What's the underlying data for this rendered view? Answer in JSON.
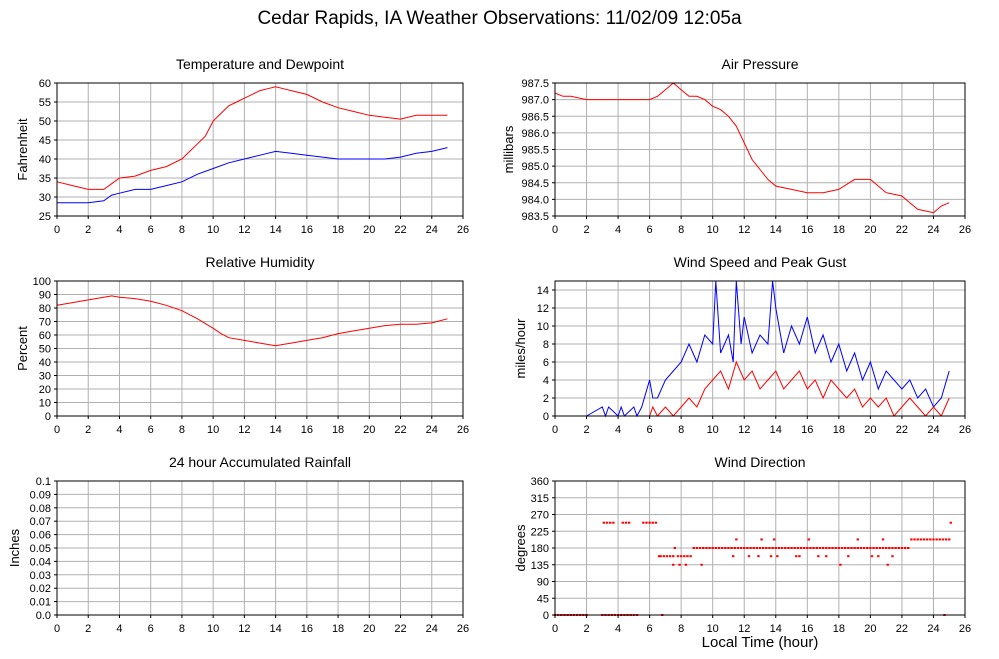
{
  "page": {
    "title": "Cedar Rapids, IA Weather Observations: 11/02/09 12:05a",
    "x_axis_label": "Local Time (hour)"
  },
  "colors": {
    "red": "#ff0000",
    "blue": "#0000ff",
    "grid": "#b0b0b0",
    "frame": "#000000"
  },
  "chart_data": [
    {
      "id": "temp",
      "type": "line",
      "title": "Temperature and Dewpoint",
      "xlabel": "",
      "ylabel": "Fahrenheit",
      "xlim": [
        0,
        26
      ],
      "ylim": [
        25,
        60
      ],
      "xticks": [
        0,
        2,
        4,
        6,
        8,
        10,
        12,
        14,
        16,
        18,
        20,
        22,
        24,
        26
      ],
      "yticks": [
        25,
        30,
        35,
        40,
        45,
        50,
        55,
        60
      ],
      "ytick_labels": [
        "25",
        "30",
        "35",
        "40",
        "45",
        "50",
        "55",
        "60"
      ],
      "grid": true,
      "series": [
        {
          "color": "#ff0000",
          "x": [
            0,
            1,
            2,
            3,
            3.5,
            4,
            5,
            6,
            7,
            8,
            8.5,
            9,
            9.5,
            10,
            10.5,
            11,
            11.5,
            12,
            12.5,
            13,
            13.5,
            14,
            14.5,
            15,
            16,
            17,
            18,
            19,
            20,
            21,
            22,
            23,
            24,
            25
          ],
          "y": [
            34,
            33,
            32,
            32,
            33.5,
            35,
            35.5,
            37,
            38,
            40,
            42,
            44,
            46,
            50,
            52,
            54,
            55,
            56,
            57,
            58,
            58.5,
            59,
            58.5,
            58,
            57,
            55,
            53.5,
            52.5,
            51.5,
            51,
            50.5,
            51.5,
            51.5,
            51.5
          ]
        },
        {
          "color": "#0000ff",
          "x": [
            0,
            1,
            2,
            3,
            3.5,
            4,
            5,
            6,
            7,
            8,
            9,
            10,
            11,
            12,
            13,
            14,
            15,
            16,
            17,
            18,
            19,
            20,
            21,
            22,
            23,
            24,
            25
          ],
          "y": [
            28.5,
            28.5,
            28.5,
            29,
            30.5,
            31,
            32,
            32,
            33,
            34,
            36,
            37.5,
            39,
            40,
            41,
            42,
            41.5,
            41,
            40.5,
            40,
            40,
            40,
            40,
            40.5,
            41.5,
            42,
            43
          ]
        }
      ]
    },
    {
      "id": "pressure",
      "type": "line",
      "title": "Air Pressure",
      "xlabel": "",
      "ylabel": "millibars",
      "xlim": [
        0,
        26
      ],
      "ylim": [
        983.5,
        987.5
      ],
      "xticks": [
        0,
        2,
        4,
        6,
        8,
        10,
        12,
        14,
        16,
        18,
        20,
        22,
        24,
        26
      ],
      "yticks": [
        983.5,
        984.0,
        984.5,
        985.0,
        985.5,
        986.0,
        986.5,
        987.0,
        987.5
      ],
      "ytick_labels": [
        "983.5",
        "984.0",
        "984.5",
        "985.0",
        "985.5",
        "986.0",
        "986.5",
        "987.0",
        "987.5"
      ],
      "grid": true,
      "series": [
        {
          "color": "#ff0000",
          "x": [
            0,
            0.5,
            1,
            2,
            3,
            4,
            5,
            6,
            6.5,
            7,
            7.5,
            8,
            8.5,
            9,
            9.5,
            10,
            10.5,
            11,
            11.5,
            12,
            12.5,
            13,
            13.5,
            14,
            15,
            16,
            17,
            18,
            19,
            20,
            20.5,
            21,
            22,
            22.5,
            23,
            24,
            24.5,
            25
          ],
          "y": [
            987.2,
            987.1,
            987.1,
            987.0,
            987.0,
            987.0,
            987.0,
            987.0,
            987.1,
            987.3,
            987.5,
            987.3,
            987.1,
            987.1,
            987.0,
            986.8,
            986.7,
            986.5,
            986.2,
            985.7,
            985.2,
            984.9,
            984.6,
            984.4,
            984.3,
            984.2,
            984.2,
            984.3,
            984.6,
            984.6,
            984.4,
            984.2,
            984.1,
            983.9,
            983.7,
            983.6,
            983.8,
            983.9
          ]
        }
      ]
    },
    {
      "id": "rh",
      "type": "line",
      "title": "Relative Humidity",
      "xlabel": "",
      "ylabel": "Percent",
      "xlim": [
        0,
        26
      ],
      "ylim": [
        0,
        100
      ],
      "xticks": [
        0,
        2,
        4,
        6,
        8,
        10,
        12,
        14,
        16,
        18,
        20,
        22,
        24,
        26
      ],
      "yticks": [
        0,
        10,
        20,
        30,
        40,
        50,
        60,
        70,
        80,
        90,
        100
      ],
      "ytick_labels": [
        "0",
        "10",
        "20",
        "30",
        "40",
        "50",
        "60",
        "70",
        "80",
        "90",
        "100"
      ],
      "grid": true,
      "series": [
        {
          "color": "#ff0000",
          "x": [
            0,
            1,
            2,
            3,
            3.5,
            4,
            5,
            6,
            7,
            8,
            9,
            10,
            10.5,
            11,
            12,
            13,
            14,
            14.5,
            15,
            16,
            17,
            18,
            19,
            20,
            21,
            22,
            23,
            24,
            25
          ],
          "y": [
            82,
            84,
            86,
            88,
            89,
            88,
            87,
            85,
            82,
            78,
            72,
            65,
            61,
            58,
            56,
            54,
            52,
            53,
            54,
            56,
            58,
            61,
            63,
            65,
            67,
            68,
            68,
            69,
            72
          ]
        }
      ]
    },
    {
      "id": "wind",
      "type": "line",
      "title": "Wind Speed and Peak Gust",
      "xlabel": "",
      "ylabel": "miles/hour",
      "xlim": [
        0,
        26
      ],
      "ylim": [
        0,
        15
      ],
      "xticks": [
        0,
        2,
        4,
        6,
        8,
        10,
        12,
        14,
        16,
        18,
        20,
        22,
        24,
        26
      ],
      "yticks": [
        0,
        2,
        4,
        6,
        8,
        10,
        12,
        14
      ],
      "ytick_labels": [
        "0",
        "2",
        "4",
        "6",
        "8",
        "10",
        "12",
        "14"
      ],
      "grid": true,
      "series": [
        {
          "color": "#0000ff",
          "x": [
            0,
            1,
            2,
            2.5,
            3,
            3.2,
            3.4,
            4,
            4.2,
            4.4,
            5,
            5.2,
            5.5,
            6,
            6.2,
            6.5,
            7,
            7.5,
            8,
            8.5,
            9,
            9.5,
            10,
            10.2,
            10.5,
            11,
            11.3,
            11.5,
            11.8,
            12,
            12.5,
            13,
            13.5,
            13.8,
            14,
            14.5,
            15,
            15.5,
            16,
            16.5,
            17,
            17.5,
            18,
            18.5,
            19,
            19.5,
            20,
            20.5,
            21,
            21.5,
            22,
            22.5,
            23,
            23.5,
            24,
            24.5,
            25
          ],
          "y": [
            0,
            0,
            0,
            0.5,
            1,
            0,
            1,
            0,
            1,
            0,
            1,
            0,
            1,
            4,
            2,
            2,
            4,
            5,
            6,
            8,
            6,
            9,
            8,
            15,
            7,
            9,
            6,
            15,
            8,
            11,
            7,
            9,
            8,
            15,
            12,
            7,
            10,
            8,
            11,
            7,
            9,
            6,
            8,
            5,
            7,
            4,
            6,
            3,
            5,
            4,
            3,
            4,
            2,
            3,
            1,
            2,
            5
          ]
        },
        {
          "color": "#ff0000",
          "x": [
            0,
            5,
            5.5,
            6,
            6.2,
            6.5,
            7,
            7.5,
            8,
            8.5,
            9,
            9.5,
            10,
            10.5,
            11,
            11.5,
            12,
            12.5,
            13,
            13.5,
            14,
            14.5,
            15,
            15.5,
            16,
            16.5,
            17,
            17.5,
            18,
            18.5,
            19,
            19.5,
            20,
            20.5,
            21,
            21.5,
            22,
            22.5,
            23,
            23.5,
            24,
            24.5,
            25
          ],
          "y": [
            0,
            0,
            0,
            0,
            1,
            0,
            1,
            0,
            1,
            2,
            1,
            3,
            4,
            5,
            3,
            6,
            4,
            5,
            3,
            4,
            5,
            3,
            4,
            5,
            3,
            4,
            2,
            4,
            3,
            2,
            3,
            1,
            2,
            1,
            2,
            0,
            1,
            2,
            1,
            0,
            1,
            0,
            2
          ]
        }
      ]
    },
    {
      "id": "rain",
      "type": "line",
      "title": "24 hour Accumulated Rainfall",
      "xlabel": "",
      "ylabel": "Inches",
      "xlim": [
        0,
        26
      ],
      "ylim": [
        0,
        0.1
      ],
      "xticks": [
        0,
        2,
        4,
        6,
        8,
        10,
        12,
        14,
        16,
        18,
        20,
        22,
        24,
        26
      ],
      "yticks": [
        0,
        0.01,
        0.02,
        0.03,
        0.04,
        0.05,
        0.06,
        0.07,
        0.08,
        0.09,
        0.1
      ],
      "ytick_labels": [
        "0.0",
        "0.01",
        "0.02",
        "0.03",
        "0.04",
        "0.05",
        "0.06",
        "0.07",
        "0.08",
        "0.09",
        "0.1"
      ],
      "grid": true,
      "series": [
        {
          "color": "#ff0000",
          "x": [
            0,
            25
          ],
          "y": [
            0,
            0
          ]
        }
      ]
    },
    {
      "id": "dir",
      "type": "scatter",
      "title": "Wind Direction",
      "xlabel": "Local Time (hour)",
      "ylabel": "degrees",
      "xlim": [
        0,
        26
      ],
      "ylim": [
        0,
        360
      ],
      "xticks": [
        0,
        2,
        4,
        6,
        8,
        10,
        12,
        14,
        16,
        18,
        20,
        22,
        24,
        26
      ],
      "yticks": [
        0,
        45,
        90,
        135,
        180,
        225,
        270,
        315,
        360
      ],
      "ytick_labels": [
        "0",
        "45",
        "90",
        "135",
        "180",
        "225",
        "270",
        "315",
        "360"
      ],
      "grid": true,
      "series": [
        {
          "color": "#ff0000",
          "x": [
            0,
            0.2,
            0.4,
            0.6,
            0.8,
            1,
            1.2,
            1.4,
            1.6,
            1.8,
            2,
            3,
            3.2,
            3.4,
            3.6,
            3.8,
            4,
            4.2,
            4.4,
            4.6,
            4.8,
            5,
            5.2,
            3.1,
            3.3,
            3.5,
            3.7,
            4.3,
            4.5,
            4.7,
            5.6,
            5.8,
            6,
            6.2,
            6.4,
            6.6,
            6.7,
            6.9,
            7.1,
            7.3,
            7.5,
            7.8,
            8.0,
            8.2,
            8.4,
            8.6,
            7.6,
            8.8,
            9,
            9.2,
            9.4,
            9.6,
            9.8,
            10,
            10.2,
            10.4,
            10.6,
            10.8,
            11,
            11.2,
            11.4,
            11.6,
            11.8,
            12,
            12.2,
            12.4,
            12.6,
            12.8,
            13,
            13.2,
            13.4,
            13.6,
            13.8,
            14,
            14.2,
            14.4,
            14.6,
            14.8,
            15,
            15.2,
            15.4,
            15.6,
            15.8,
            16,
            16.2,
            16.4,
            16.6,
            16.8,
            17,
            17.2,
            17.4,
            17.6,
            17.8,
            18,
            18.2,
            18.4,
            18.6,
            18.8,
            19,
            19.2,
            19.4,
            19.6,
            19.8,
            20,
            20.2,
            20.4,
            20.6,
            20.8,
            21,
            21.2,
            21.4,
            21.6,
            21.8,
            22,
            22.2,
            22.4,
            7.5,
            7.9,
            8.3,
            9.3,
            11.3,
            12.3,
            13.7,
            15.5,
            17.2,
            18.6,
            20.1,
            20.5,
            21.4,
            11.5,
            13.1,
            13.9,
            16.1,
            19.2,
            20.8,
            12.9,
            14.1,
            15.3,
            16.7,
            18.1,
            21.1,
            22.6,
            22.8,
            23,
            23.2,
            23.4,
            23.6,
            23.8,
            24,
            24.2,
            24.4,
            24.6,
            24.8,
            25,
            25.1,
            6.8,
            24.7
          ],
          "y": [
            0,
            0,
            0,
            0,
            0,
            0,
            0,
            0,
            0,
            0,
            0,
            0,
            0,
            0,
            0,
            0,
            0,
            0,
            0,
            0,
            0,
            0,
            0,
            248,
            248,
            248,
            248,
            248,
            248,
            248,
            248,
            248,
            248,
            248,
            248,
            158,
            158,
            158,
            158,
            158,
            158,
            158,
            158,
            158,
            158,
            158,
            180,
            180,
            180,
            180,
            180,
            180,
            180,
            180,
            180,
            180,
            180,
            180,
            180,
            180,
            180,
            180,
            180,
            180,
            180,
            180,
            180,
            180,
            180,
            180,
            180,
            180,
            180,
            180,
            180,
            180,
            180,
            180,
            180,
            180,
            180,
            180,
            180,
            180,
            180,
            180,
            180,
            180,
            180,
            180,
            180,
            180,
            180,
            180,
            180,
            180,
            180,
            180,
            180,
            180,
            180,
            180,
            180,
            180,
            180,
            180,
            180,
            180,
            180,
            180,
            180,
            180,
            180,
            180,
            180,
            180,
            135,
            135,
            135,
            135,
            158,
            158,
            158,
            158,
            158,
            158,
            158,
            158,
            158,
            203,
            203,
            203,
            203,
            203,
            203,
            158,
            158,
            158,
            158,
            135,
            135,
            203,
            203,
            203,
            203,
            203,
            203,
            203,
            203,
            203,
            203,
            203,
            203,
            203,
            248,
            0,
            0
          ]
        }
      ]
    }
  ]
}
